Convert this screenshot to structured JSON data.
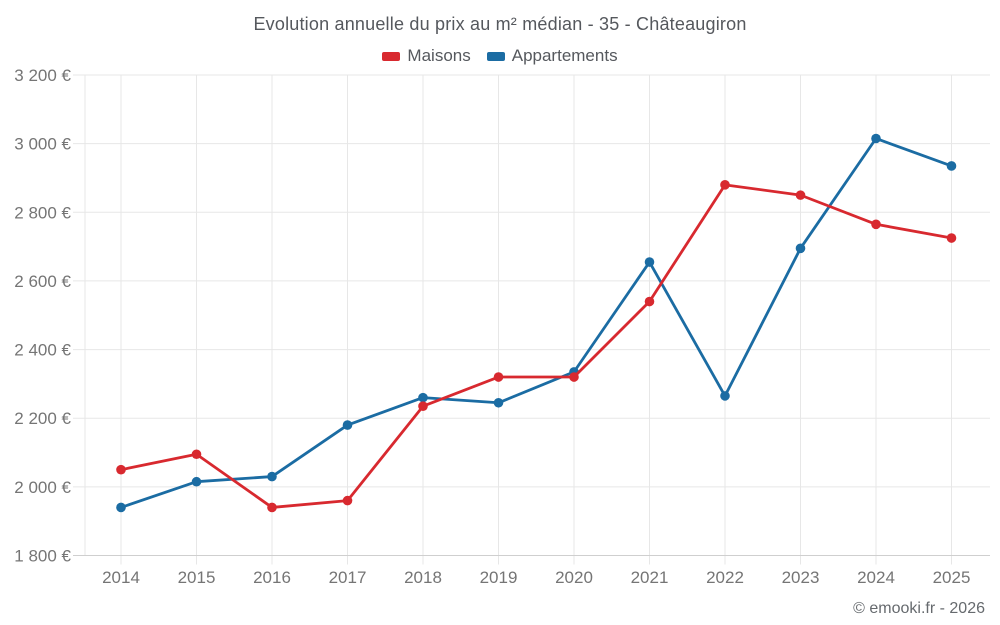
{
  "footer": {
    "credit": "© emooki.fr - 2026"
  },
  "chart_data": {
    "type": "line",
    "title": "Evolution annuelle du prix au m² médian - 35 - Châteaugiron",
    "categories": [
      "2014",
      "2015",
      "2016",
      "2017",
      "2018",
      "2019",
      "2020",
      "2021",
      "2022",
      "2023",
      "2024",
      "2025"
    ],
    "series": [
      {
        "name": "Maisons",
        "color": "#d8292f",
        "values": [
          2050,
          2095,
          1940,
          1960,
          2235,
          2320,
          2320,
          2540,
          2880,
          2850,
          2765,
          2725
        ]
      },
      {
        "name": "Appartements",
        "color": "#1b6ca3",
        "values": [
          1940,
          2015,
          2030,
          2180,
          2260,
          2245,
          2335,
          2655,
          2265,
          2695,
          3015,
          2935
        ]
      }
    ],
    "xlabel": "",
    "ylabel": "",
    "ylim": [
      1800,
      3200
    ],
    "ytick_step": 200,
    "ytick_suffix": " €",
    "grid": true,
    "legend_position": "top",
    "draw_order": [
      "Appartements",
      "Maisons"
    ],
    "colors": {
      "gridline": "#e7e7e7",
      "axis_line": "#cfcfcf",
      "tick_label": "#757575",
      "title_text": "#55585d",
      "credit_text": "#666a6e"
    }
  }
}
